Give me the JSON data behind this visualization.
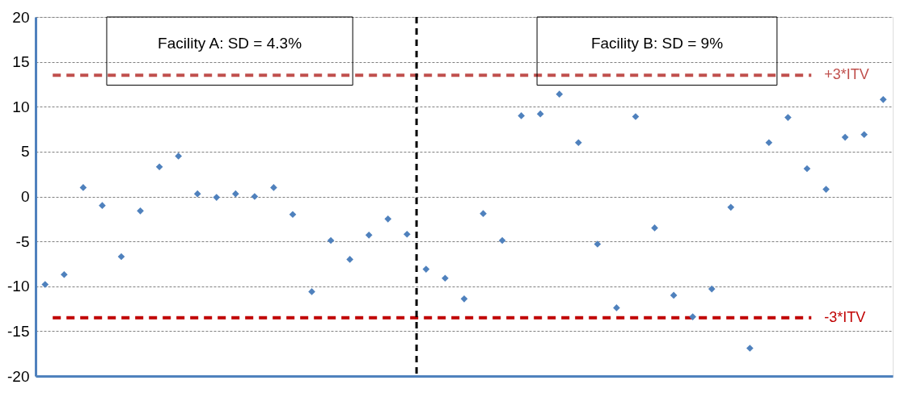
{
  "chart_data": {
    "type": "scatter",
    "categories": [
      null,
      null,
      null,
      null,
      null,
      null,
      null,
      null,
      null,
      null,
      null,
      null,
      null,
      null,
      null,
      null,
      null,
      null,
      null,
      null,
      null,
      null,
      null,
      null,
      null,
      null,
      null,
      null,
      null,
      null,
      null,
      null,
      null,
      null,
      null,
      null,
      null,
      null,
      null,
      null,
      null,
      null,
      null,
      null,
      null
    ],
    "series": [
      {
        "color": "#4f81bd",
        "values": [
          -9.8,
          -8.7,
          1.0,
          -1.0,
          -6.7,
          -1.6,
          3.3,
          4.5,
          0.3,
          -0.1,
          0.3,
          0.0,
          1.0,
          -2.0,
          -10.6,
          -4.9,
          -7.0,
          -4.3,
          -2.5,
          -4.2,
          -8.1,
          -9.1,
          -11.4,
          -1.9,
          -4.9,
          9.0,
          9.2,
          11.4,
          6.0,
          -5.3,
          -12.4,
          8.9,
          -3.5,
          -11.0,
          -13.4,
          -10.3,
          -1.2,
          -16.9,
          6.0,
          8.8,
          3.1,
          0.8,
          6.6,
          6.9,
          10.8
        ]
      }
    ],
    "ylim": [
      -20,
      20
    ],
    "yticks": [
      -20,
      -15,
      -10,
      -5,
      0,
      5,
      10,
      15,
      20
    ],
    "tick_labels": "y",
    "grid": "y",
    "marker": "diamond",
    "ref_lines": [
      {
        "axis": "y",
        "value": 13.5,
        "label": "+3*ITV",
        "color": "#c0504d",
        "line_style": "dashed"
      },
      {
        "axis": "y",
        "value": -13.5,
        "label": "-3*ITV",
        "color": "#c00000",
        "line_style": "dashed"
      }
    ],
    "annotations": [
      "Facility A: SD = 4.3%",
      "Facility B: SD = 9%"
    ]
  }
}
